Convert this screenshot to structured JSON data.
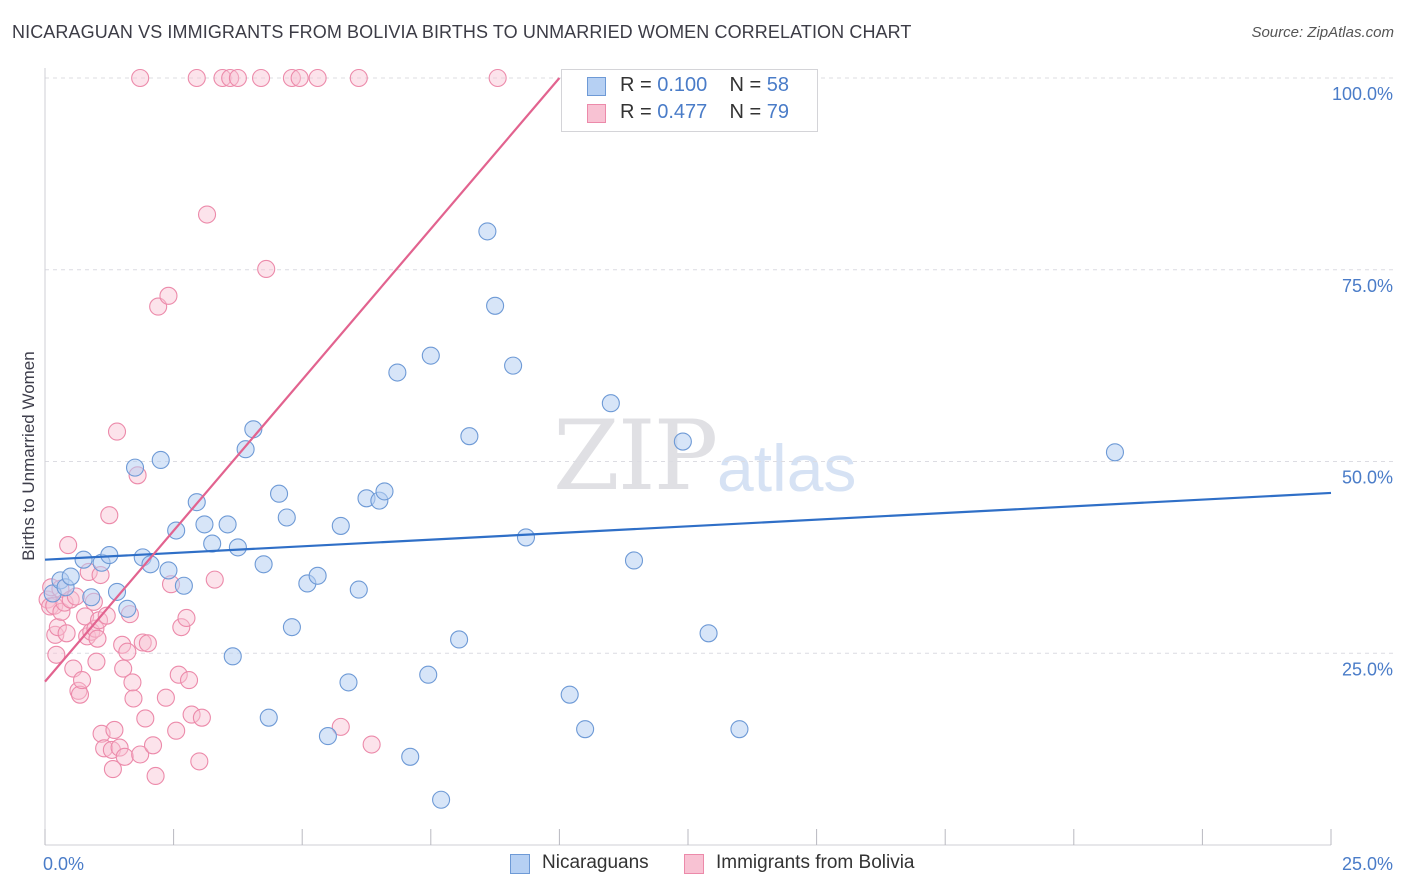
{
  "title": "NICARAGUAN VS IMMIGRANTS FROM BOLIVIA BIRTHS TO UNMARRIED WOMEN CORRELATION CHART",
  "source": "Source: ZipAtlas.com",
  "watermark": {
    "zip": "ZIP",
    "atlas": "atlas"
  },
  "legend": {
    "nicaraguans": {
      "r_label": "R = ",
      "r_value": "0.100",
      "n_label": "N = ",
      "n_value": "58"
    },
    "bolivia": {
      "r_label": "R = ",
      "r_value": "0.477",
      "n_label": "N = ",
      "n_value": "79"
    }
  },
  "bottom_legend": {
    "nicaraguans": "Nicaraguans",
    "bolivia": "Immigrants from Bolivia"
  },
  "colors": {
    "blue_fill": "#b6d0f3",
    "blue_stroke": "#6e9ad6",
    "blue_line": "#2f6fc7",
    "pink_fill": "#f8c2d3",
    "pink_stroke": "#ec8aaa",
    "pink_line": "#e2638f",
    "grid": "#dcdce2",
    "axis_text": "#4a7cc8"
  },
  "chart_data": {
    "type": "scatter",
    "title": "NICARAGUAN VS IMMIGRANTS FROM BOLIVIA BIRTHS TO UNMARRIED WOMEN CORRELATION CHART",
    "xlabel": "",
    "ylabel": "Births to Unmarried Women",
    "xlim": [
      0,
      25
    ],
    "ylim": [
      0,
      100
    ],
    "x_tick_labels": [
      "0.0%",
      "25.0%"
    ],
    "y_tick_labels": [
      "100.0%",
      "75.0%",
      "50.0%",
      "25.0%"
    ],
    "y_tick_values": [
      100,
      75,
      50,
      25
    ],
    "series": [
      {
        "name": "Nicaraguans",
        "color": "blue",
        "trend": {
          "x": [
            0,
            25
          ],
          "y": [
            37.2,
            45.9
          ]
        },
        "points": [
          [
            0.15,
            32.8
          ],
          [
            0.3,
            34.5
          ],
          [
            0.4,
            33.6
          ],
          [
            0.5,
            35.0
          ],
          [
            0.75,
            37.2
          ],
          [
            0.9,
            32.3
          ],
          [
            1.1,
            36.8
          ],
          [
            1.25,
            37.8
          ],
          [
            1.4,
            33.0
          ],
          [
            1.6,
            30.8
          ],
          [
            1.75,
            49.2
          ],
          [
            1.9,
            37.5
          ],
          [
            2.05,
            36.6
          ],
          [
            2.25,
            50.2
          ],
          [
            2.4,
            35.8
          ],
          [
            2.55,
            41.0
          ],
          [
            2.7,
            33.8
          ],
          [
            2.95,
            44.7
          ],
          [
            3.1,
            41.8
          ],
          [
            3.25,
            39.3
          ],
          [
            3.55,
            41.8
          ],
          [
            3.65,
            24.6
          ],
          [
            3.75,
            38.8
          ],
          [
            3.9,
            51.6
          ],
          [
            4.05,
            54.2
          ],
          [
            4.25,
            36.6
          ],
          [
            4.35,
            16.6
          ],
          [
            4.55,
            45.8
          ],
          [
            4.7,
            42.7
          ],
          [
            4.8,
            28.4
          ],
          [
            5.1,
            34.1
          ],
          [
            5.3,
            35.1
          ],
          [
            5.5,
            14.2
          ],
          [
            5.75,
            41.6
          ],
          [
            5.9,
            21.2
          ],
          [
            6.1,
            33.3
          ],
          [
            6.25,
            45.2
          ],
          [
            6.5,
            44.9
          ],
          [
            6.6,
            46.1
          ],
          [
            6.85,
            61.6
          ],
          [
            7.1,
            11.5
          ],
          [
            7.45,
            22.2
          ],
          [
            7.5,
            63.8
          ],
          [
            7.7,
            5.9
          ],
          [
            8.05,
            26.8
          ],
          [
            8.25,
            53.3
          ],
          [
            8.6,
            80.0
          ],
          [
            8.75,
            70.3
          ],
          [
            9.1,
            62.5
          ],
          [
            9.35,
            40.1
          ],
          [
            10.2,
            19.6
          ],
          [
            10.5,
            15.1
          ],
          [
            11.0,
            57.6
          ],
          [
            11.45,
            37.1
          ],
          [
            12.4,
            52.6
          ],
          [
            12.9,
            27.6
          ],
          [
            13.5,
            15.1
          ],
          [
            20.8,
            51.2
          ]
        ]
      },
      {
        "name": "Immigrants from Bolivia",
        "color": "pink",
        "trend": {
          "x": [
            0,
            10
          ],
          "y": [
            21.3,
            100
          ]
        },
        "points": [
          [
            0.05,
            32.0
          ],
          [
            0.1,
            31.1
          ],
          [
            0.12,
            33.6
          ],
          [
            0.18,
            31.2
          ],
          [
            0.2,
            27.4
          ],
          [
            0.22,
            24.8
          ],
          [
            0.25,
            28.4
          ],
          [
            0.3,
            33.4
          ],
          [
            0.32,
            30.4
          ],
          [
            0.38,
            31.6
          ],
          [
            0.42,
            27.6
          ],
          [
            0.45,
            39.1
          ],
          [
            0.5,
            32.0
          ],
          [
            0.55,
            23.0
          ],
          [
            0.6,
            32.4
          ],
          [
            0.65,
            20.1
          ],
          [
            0.68,
            19.6
          ],
          [
            0.72,
            21.5
          ],
          [
            0.78,
            29.8
          ],
          [
            0.82,
            27.2
          ],
          [
            0.85,
            35.6
          ],
          [
            0.9,
            27.8
          ],
          [
            0.95,
            31.7
          ],
          [
            0.98,
            28.2
          ],
          [
            1.0,
            23.9
          ],
          [
            1.02,
            26.9
          ],
          [
            1.05,
            29.3
          ],
          [
            1.08,
            35.2
          ],
          [
            1.1,
            14.5
          ],
          [
            1.15,
            12.6
          ],
          [
            1.2,
            29.9
          ],
          [
            1.25,
            43.0
          ],
          [
            1.3,
            12.4
          ],
          [
            1.32,
            9.9
          ],
          [
            1.35,
            15.0
          ],
          [
            1.4,
            53.9
          ],
          [
            1.45,
            12.7
          ],
          [
            1.5,
            26.1
          ],
          [
            1.52,
            23.0
          ],
          [
            1.55,
            11.5
          ],
          [
            1.6,
            25.2
          ],
          [
            1.65,
            30.1
          ],
          [
            1.7,
            21.2
          ],
          [
            1.72,
            19.1
          ],
          [
            1.8,
            48.2
          ],
          [
            1.85,
            11.8
          ],
          [
            1.9,
            26.4
          ],
          [
            1.95,
            16.5
          ],
          [
            2.0,
            26.3
          ],
          [
            2.1,
            13.0
          ],
          [
            2.15,
            9.0
          ],
          [
            2.2,
            70.2
          ],
          [
            2.35,
            19.2
          ],
          [
            2.4,
            71.6
          ],
          [
            2.45,
            34.0
          ],
          [
            2.55,
            14.9
          ],
          [
            2.6,
            22.2
          ],
          [
            2.65,
            28.4
          ],
          [
            2.75,
            29.6
          ],
          [
            2.8,
            21.5
          ],
          [
            2.85,
            17.0
          ],
          [
            3.0,
            10.9
          ],
          [
            3.05,
            16.6
          ],
          [
            3.15,
            82.2
          ],
          [
            3.3,
            34.6
          ],
          [
            1.85,
            100
          ],
          [
            2.95,
            100
          ],
          [
            3.45,
            100
          ],
          [
            3.6,
            100
          ],
          [
            3.75,
            100
          ],
          [
            4.2,
            100
          ],
          [
            4.3,
            75.1
          ],
          [
            4.8,
            100
          ],
          [
            4.95,
            100
          ],
          [
            5.3,
            100
          ],
          [
            5.75,
            15.4
          ],
          [
            6.1,
            100
          ],
          [
            6.35,
            13.1
          ],
          [
            8.8,
            100
          ]
        ]
      }
    ]
  }
}
